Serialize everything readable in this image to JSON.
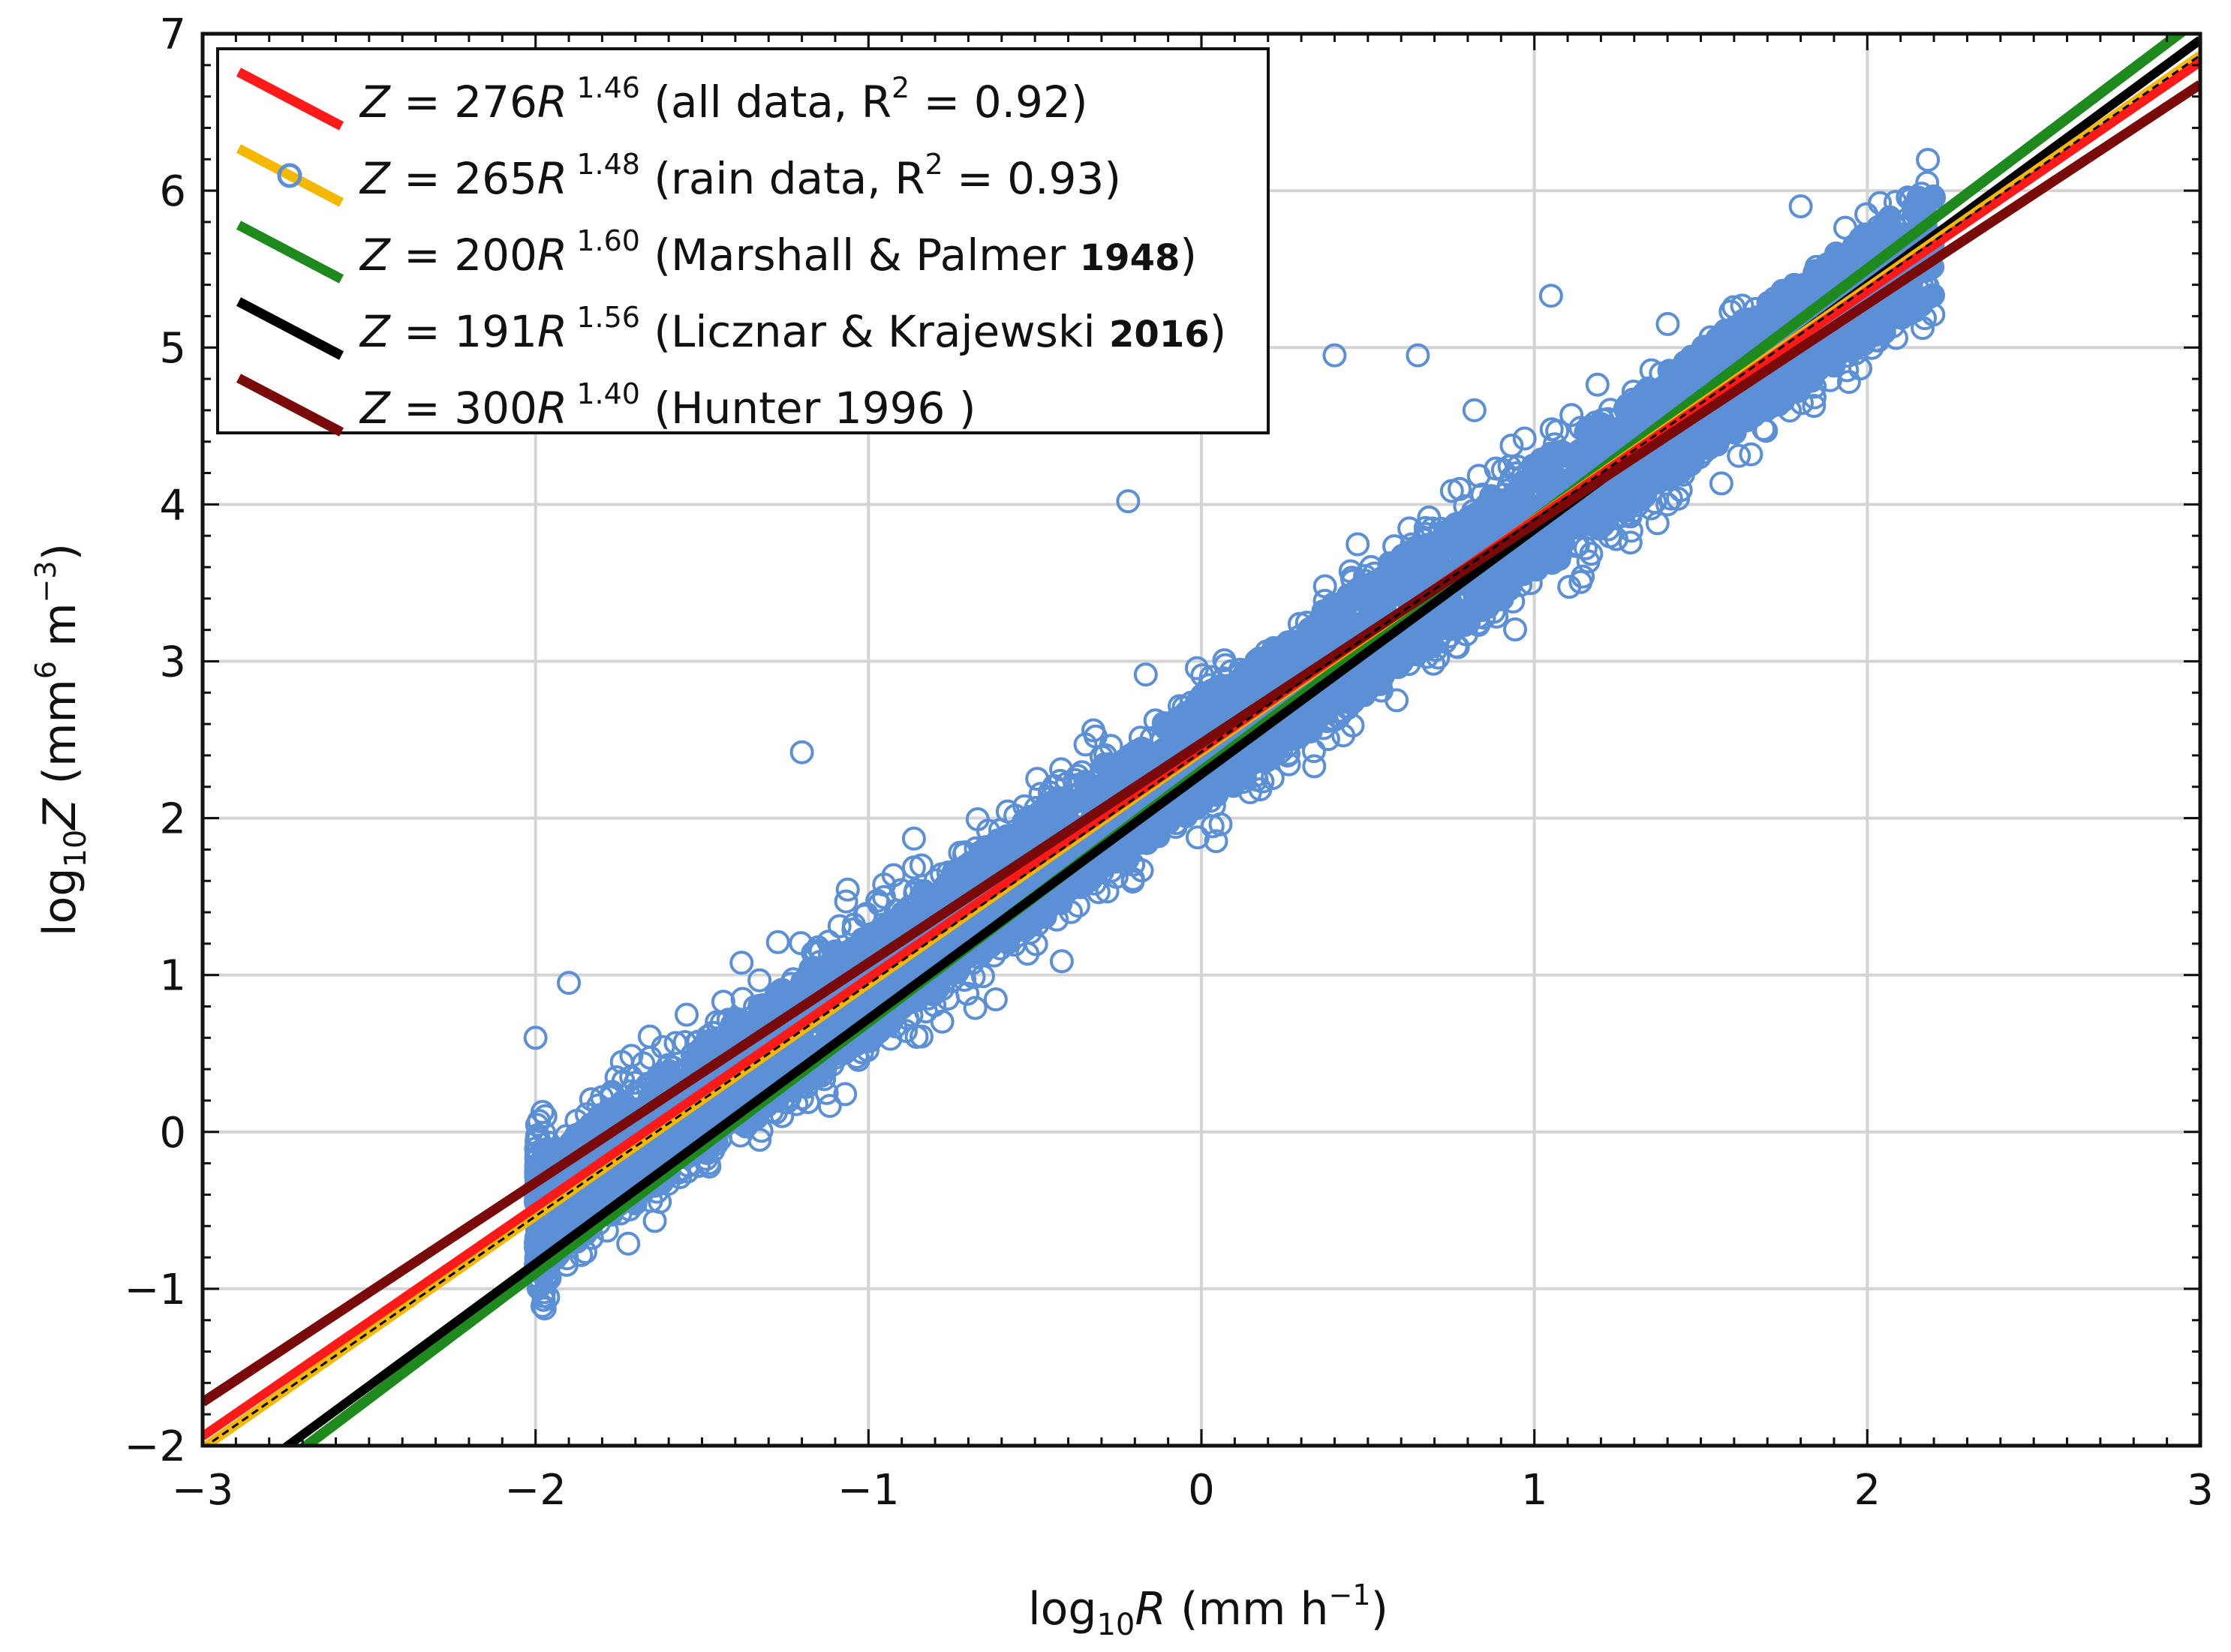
{
  "chart_data": {
    "type": "scatter",
    "title": "",
    "xlabel": {
      "prefix": "log",
      "sub": "10",
      "var": "R",
      "unit_open": " (mm h",
      "unit_sup": "−1",
      "unit_close": ")"
    },
    "ylabel": {
      "prefix": "log",
      "sub": "10",
      "var": "Z",
      "unit_open": " (mm",
      "sup1": "6",
      "mid": " m",
      "sup2": "−3",
      "unit_close": ")"
    },
    "xlim": [
      -3,
      3
    ],
    "ylim": [
      -2,
      7
    ],
    "xticks": [
      -3,
      -2,
      -1,
      0,
      1,
      2,
      3
    ],
    "xtick_labels": [
      "−3",
      "−2",
      "−1",
      "0",
      "1",
      "2",
      "3"
    ],
    "yticks": [
      -2,
      -1,
      0,
      1,
      2,
      3,
      4,
      5,
      6,
      7
    ],
    "ytick_labels": [
      "−2",
      "−1",
      "0",
      "1",
      "2",
      "3",
      "4",
      "5",
      "6",
      "7"
    ],
    "grid": true,
    "legend_position": "top-left",
    "scatter": {
      "name": "rain data",
      "marker": "open-circle",
      "color": "#5b8fd6",
      "x_range": [
        -2.0,
        2.2
      ],
      "band_center": {
        "slope": 1.48,
        "intercept": 2.42
      },
      "band_half_width": 0.6,
      "outliers": [
        {
          "x": -1.2,
          "y": 2.42
        },
        {
          "x": -0.22,
          "y": 4.02
        },
        {
          "x": 0.4,
          "y": 4.95
        },
        {
          "x": 0.65,
          "y": 4.95
        },
        {
          "x": 1.05,
          "y": 5.33
        },
        {
          "x": 1.8,
          "y": 5.9
        },
        {
          "x": 2.18,
          "y": 6.05
        },
        {
          "x": 1.37,
          "y": 3.88
        },
        {
          "x": -1.9,
          "y": 0.95
        },
        {
          "x": -2.0,
          "y": 0.6
        },
        {
          "x": 1.4,
          "y": 4.0
        },
        {
          "x": 0.82,
          "y": 4.6
        }
      ]
    },
    "series": [
      {
        "name": "all data",
        "coef": "276",
        "exp": "1.46",
        "note": "(all data, R",
        "note_sup": "2",
        "note_end": " = 0.92)",
        "slope": 1.46,
        "intercept": 2.44,
        "color": "#ff1a1a",
        "width": 12
      },
      {
        "name": "rain data",
        "coef": "265",
        "exp": "1.48",
        "note": "(rain data, R",
        "note_sup": "2",
        "note_end": " = 0.93)",
        "slope": 1.48,
        "intercept": 2.423,
        "color": "#f5b800",
        "width": 12
      },
      {
        "name": "Marshall & Palmer",
        "coef": "200",
        "exp": "1.60",
        "note": "(Marshall & Palmer ",
        "year": "1948",
        "note_end": ")",
        "slope": 1.6,
        "intercept": 2.301,
        "color": "#1e8a1e",
        "width": 14
      },
      {
        "name": "Licznar & Krajewski",
        "coef": "191",
        "exp": "1.56",
        "note": "(Licznar & Krajewski ",
        "year": "2016",
        "note_end": ")",
        "slope": 1.56,
        "intercept": 2.281,
        "color": "#000000",
        "width": 12
      },
      {
        "name": "Hunter",
        "coef": "300",
        "exp": "1.40",
        "note": "(Hunter 1996 )",
        "note_end": "",
        "slope": 1.4,
        "intercept": 2.477,
        "color": "#7a0a0a",
        "width": 13
      }
    ],
    "legend_eq": {
      "z": "Z",
      "eq": " = ",
      "r": "R"
    }
  }
}
